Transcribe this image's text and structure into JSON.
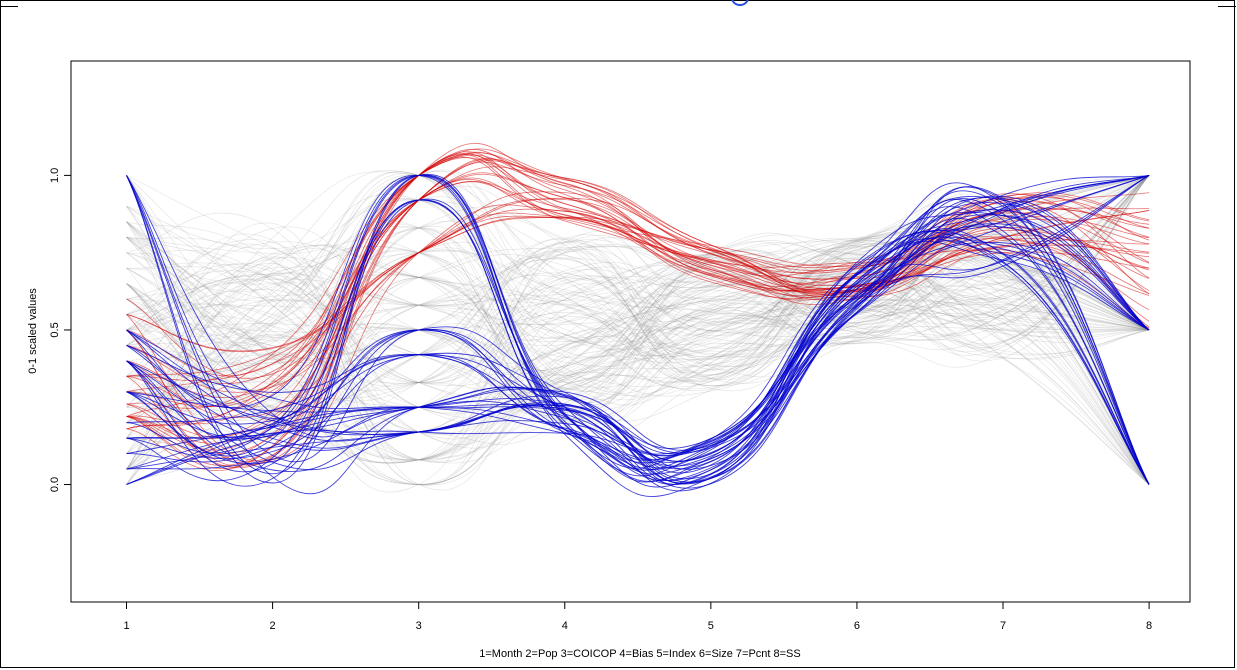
{
  "chart_data": {
    "type": "line",
    "title": "",
    "xlabel": "1=Month 2=Pop 3=COICOP 4=Bias 5=Index 6=Size 7=Pcnt 8=SS",
    "ylabel": "0-1 scaled values",
    "x": [
      1,
      2,
      3,
      4,
      5,
      6,
      7,
      8
    ],
    "x_ticks": [
      "1",
      "2",
      "3",
      "4",
      "5",
      "6",
      "7",
      "8"
    ],
    "y_ticks": [
      "0.0",
      "0.5",
      "1.0"
    ],
    "xlim": [
      0.62,
      8.28
    ],
    "ylim": [
      -0.38,
      1.37
    ],
    "grid": false,
    "legend": "none",
    "series_groups": [
      {
        "color": "#8c8c8c",
        "count": 160,
        "nodes_y": [
          [
            0.0,
            0.05,
            0.1,
            0.15,
            0.2,
            0.25,
            0.3,
            0.35,
            0.4,
            0.45,
            0.5,
            0.55,
            0.6,
            0.65,
            0.7,
            0.75,
            0.8,
            0.85,
            0.9,
            1.0
          ],
          [
            0.15,
            0.85
          ],
          [
            0.0,
            0.08,
            0.17,
            0.25,
            0.33,
            0.42,
            0.5,
            0.58,
            0.67,
            0.75,
            0.83,
            0.92,
            1.0
          ],
          [
            0.2,
            0.8
          ],
          [
            0.3,
            0.75
          ],
          [
            0.45,
            0.8
          ],
          [
            0.4,
            0.9
          ],
          [
            0.0,
            0.5,
            1.0
          ]
        ]
      },
      {
        "color": "#d40000",
        "count": 32,
        "nodes_y": [
          [
            0.18,
            0.22,
            0.26,
            0.3,
            0.35,
            0.4,
            0.45,
            0.5,
            0.55,
            0.6
          ],
          [
            0.05,
            0.45
          ],
          [
            0.75,
            0.92,
            1.0
          ],
          [
            0.85,
            1.0
          ],
          [
            0.65,
            0.78
          ],
          [
            0.6,
            0.72
          ],
          [
            0.72,
            0.95
          ],
          [
            0.5,
            1.0
          ]
        ]
      },
      {
        "color": "#0000cc",
        "count": 38,
        "nodes_y": [
          [
            0.0,
            0.05,
            0.1,
            0.15,
            0.2,
            0.3,
            0.4,
            0.45,
            0.5,
            1.0
          ],
          [
            0.0,
            0.3
          ],
          [
            0.17,
            0.25,
            0.33,
            0.42,
            0.5,
            0.92,
            1.0
          ],
          [
            0.15,
            0.3
          ],
          [
            0.0,
            0.15
          ],
          [
            0.55,
            0.72
          ],
          [
            0.7,
            0.95
          ],
          [
            0.0,
            0.5,
            1.0
          ]
        ]
      }
    ]
  }
}
